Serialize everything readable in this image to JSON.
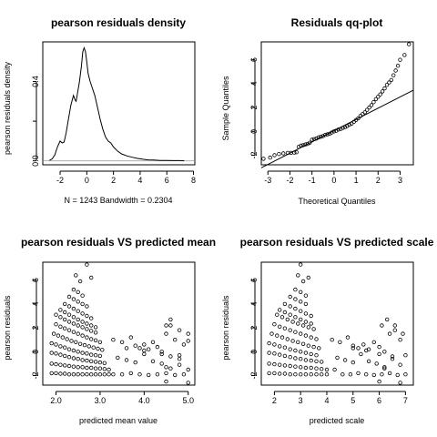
{
  "chart_data": [
    {
      "type": "line",
      "title": "pearson residuals density",
      "xlabel": "N = 1243   Bandwidth = 0.2304",
      "ylabel": "pearson residuals density",
      "xlim": [
        -3.3,
        8.1
      ],
      "ylim": [
        -0.02,
        0.6
      ],
      "x_ticks": [
        -2,
        0,
        2,
        4,
        6,
        8
      ],
      "y_ticks": [
        0.0,
        0.2,
        0.4
      ],
      "y_tick_labels": [
        "0.0",
        "",
        "0.4"
      ],
      "zero_line": true,
      "grid": false,
      "series": [
        {
          "x": [
            -2.8,
            -2.6,
            -2.4,
            -2.2,
            -2.0,
            -1.85,
            -1.7,
            -1.55,
            -1.4,
            -1.2,
            -1.0,
            -0.9,
            -0.8,
            -0.7,
            -0.55,
            -0.4,
            -0.3,
            -0.2,
            -0.1,
            0.0,
            0.1,
            0.25,
            0.4,
            0.6,
            0.8,
            1.0,
            1.2,
            1.4,
            1.6,
            1.8,
            2.0,
            2.3,
            2.6,
            3.0,
            3.4,
            3.8,
            4.2,
            4.6,
            5.0,
            5.5,
            6.0,
            6.5,
            7.0,
            7.3
          ],
          "y": [
            0.002,
            0.01,
            0.03,
            0.07,
            0.1,
            0.09,
            0.095,
            0.14,
            0.2,
            0.28,
            0.33,
            0.31,
            0.3,
            0.34,
            0.4,
            0.48,
            0.55,
            0.57,
            0.55,
            0.5,
            0.44,
            0.4,
            0.37,
            0.33,
            0.27,
            0.21,
            0.16,
            0.12,
            0.1,
            0.09,
            0.07,
            0.05,
            0.035,
            0.025,
            0.018,
            0.012,
            0.008,
            0.005,
            0.004,
            0.002,
            0.002,
            0.001,
            0.001,
            0.0
          ]
        }
      ]
    },
    {
      "type": "scatter",
      "title": "Residuals qq-plot",
      "xlabel": "Theoretical Quantiles",
      "ylabel": "Sample Quantiles",
      "xlim": [
        -3.3,
        3.6
      ],
      "ylim": [
        -2.8,
        7.5
      ],
      "x_ticks": [
        -3,
        -2,
        -1,
        0,
        1,
        2,
        3
      ],
      "y_ticks": [
        -2,
        0,
        2,
        4,
        6
      ],
      "reference_line": {
        "x": [
          -3.3,
          3.6
        ],
        "y": [
          -3.05,
          3.45
        ]
      },
      "series": [
        {
          "x": [
            -3.2,
            -2.9,
            -2.7,
            -2.5,
            -2.3,
            -2.1,
            -1.95,
            -1.8,
            -1.7,
            -1.6,
            -1.5,
            -1.4,
            -1.3,
            -1.2,
            -1.1,
            -1.0,
            -0.9,
            -0.8,
            -0.7,
            -0.6,
            -0.5,
            -0.4,
            -0.3,
            -0.2,
            -0.1,
            0.0,
            0.1,
            0.2,
            0.3,
            0.4,
            0.5,
            0.6,
            0.7,
            0.8,
            0.9,
            1.0,
            1.1,
            1.2,
            1.3,
            1.4,
            1.5,
            1.6,
            1.7,
            1.8,
            1.9,
            2.0,
            2.1,
            2.2,
            2.3,
            2.4,
            2.5,
            2.6,
            2.7,
            2.8,
            2.9,
            3.0,
            3.2,
            3.4
          ],
          "y": [
            -2.3,
            -2.2,
            -2.0,
            -1.9,
            -1.85,
            -1.8,
            -1.8,
            -1.78,
            -1.75,
            -1.3,
            -1.2,
            -1.15,
            -1.1,
            -1.05,
            -0.95,
            -0.7,
            -0.65,
            -0.6,
            -0.5,
            -0.45,
            -0.4,
            -0.3,
            -0.25,
            -0.2,
            -0.1,
            0.0,
            0.05,
            0.15,
            0.2,
            0.3,
            0.35,
            0.45,
            0.55,
            0.65,
            0.8,
            0.95,
            1.1,
            1.3,
            1.45,
            1.6,
            1.8,
            2.0,
            2.2,
            2.45,
            2.7,
            2.9,
            3.1,
            3.35,
            3.6,
            3.9,
            4.1,
            4.3,
            4.7,
            5.1,
            5.5,
            6.0,
            6.4,
            7.3
          ]
        }
      ]
    },
    {
      "type": "scatter",
      "title": "pearson residuals VS predicted mean",
      "xlabel": "predicted mean value",
      "ylabel": "pearson residuals",
      "xlim": [
        1.7,
        5.15
      ],
      "ylim": [
        -2.8,
        7.5
      ],
      "x_ticks": [
        2.0,
        3.0,
        4.0,
        5.0
      ],
      "x_tick_labels": [
        "2.0",
        "3.0",
        "4.0",
        "5.0"
      ],
      "y_ticks": [
        -2,
        0,
        2,
        4,
        6
      ],
      "series": [
        {
          "x": [
            1.9,
            2.0,
            2.1,
            2.2,
            2.3,
            2.4,
            2.5,
            2.6,
            2.7,
            2.8,
            2.9,
            3.0,
            3.1,
            3.2,
            1.9,
            2.0,
            2.1,
            2.2,
            2.3,
            2.4,
            2.5,
            2.6,
            2.7,
            2.8,
            2.9,
            3.0,
            3.1,
            3.2,
            1.9,
            2.0,
            2.1,
            2.2,
            2.3,
            2.4,
            2.5,
            2.6,
            2.7,
            2.8,
            2.9,
            3.0,
            3.1,
            1.9,
            2.0,
            2.1,
            2.2,
            2.3,
            2.4,
            2.5,
            2.6,
            2.7,
            2.8,
            2.9,
            3.0,
            1.95,
            2.05,
            2.15,
            2.25,
            2.35,
            2.45,
            2.55,
            2.65,
            2.75,
            2.85,
            2.95,
            3.05,
            2.0,
            2.1,
            2.2,
            2.3,
            2.4,
            2.5,
            2.6,
            2.7,
            2.8,
            2.9,
            3.0,
            2.0,
            2.1,
            2.2,
            2.3,
            2.4,
            2.5,
            2.6,
            2.7,
            2.8,
            2.9,
            2.1,
            2.2,
            2.3,
            2.4,
            2.5,
            2.6,
            2.7,
            2.8,
            2.9,
            2.2,
            2.3,
            2.4,
            2.5,
            2.6,
            2.7,
            2.8,
            2.3,
            2.4,
            2.5,
            2.6,
            2.7,
            2.4,
            2.5,
            2.6,
            2.45,
            2.55,
            2.7,
            2.8,
            3.3,
            3.5,
            3.7,
            3.8,
            3.9,
            4.0,
            4.1,
            4.2,
            4.3,
            4.4,
            4.5,
            4.6,
            4.7,
            4.8,
            4.9,
            5.0,
            3.4,
            3.6,
            3.8,
            4.0,
            4.2,
            4.4,
            4.5,
            4.6,
            4.8,
            5.0,
            3.3,
            3.5,
            3.7,
            3.9,
            4.1,
            4.3,
            4.5,
            4.7,
            4.9,
            3.6,
            4.0,
            4.4,
            4.6,
            4.8,
            5.0,
            4.5,
            4.6,
            4.8,
            4.5,
            5.0
          ],
          "y": [
            -1.8,
            -1.8,
            -1.85,
            -1.85,
            -1.9,
            -1.9,
            -1.9,
            -1.9,
            -1.9,
            -1.9,
            -1.9,
            -1.9,
            -1.9,
            -1.9,
            -1.0,
            -1.05,
            -1.1,
            -1.15,
            -1.2,
            -1.25,
            -1.3,
            -1.3,
            -1.35,
            -1.35,
            -1.4,
            -1.4,
            -1.45,
            -1.5,
            -0.1,
            -0.15,
            -0.25,
            -0.35,
            -0.45,
            -0.55,
            -0.6,
            -0.7,
            -0.75,
            -0.8,
            -0.85,
            -0.9,
            -0.95,
            0.7,
            0.6,
            0.45,
            0.35,
            0.2,
            0.1,
            0.0,
            -0.1,
            -0.15,
            -0.25,
            -0.3,
            -0.35,
            1.5,
            1.35,
            1.2,
            1.05,
            0.9,
            0.8,
            0.65,
            0.55,
            0.45,
            0.35,
            0.25,
            0.15,
            2.3,
            2.1,
            1.95,
            1.8,
            1.65,
            1.5,
            1.35,
            1.2,
            1.05,
            0.95,
            0.8,
            3.1,
            2.9,
            2.7,
            2.5,
            2.35,
            2.2,
            2.05,
            1.9,
            1.75,
            1.6,
            3.5,
            3.3,
            3.1,
            2.9,
            2.7,
            2.5,
            2.35,
            2.2,
            2.05,
            4.0,
            3.8,
            3.6,
            3.4,
            3.2,
            3.0,
            2.8,
            4.6,
            4.4,
            4.2,
            4.0,
            3.8,
            5.2,
            5.0,
            4.7,
            6.4,
            5.9,
            7.3,
            6.2,
            1.0,
            0.8,
            1.2,
            0.5,
            0.3,
            0.6,
            0.2,
            0.8,
            0.4,
            0.0,
            1.5,
            2.2,
            1.0,
            -0.3,
            0.6,
            0.9,
            -0.5,
            -0.7,
            -0.9,
            -0.2,
            -0.8,
            -1.0,
            -1.3,
            -0.4,
            -1.1,
            -1.5,
            -1.9,
            -1.9,
            -1.8,
            -1.9,
            -1.95,
            -1.9,
            -1.8,
            -1.95,
            -1.9,
            0.3,
            0.1,
            -0.2,
            2.7,
            1.8,
            1.5,
            -2.5,
            -1.4,
            -0.6,
            2.2,
            -2.6
          ]
        }
      ]
    },
    {
      "type": "scatter",
      "title": "pearson residuals VS predicted scale",
      "xlabel": "predicted scale",
      "ylabel": "pearson residuals",
      "xlim": [
        1.5,
        7.3
      ],
      "ylim": [
        -2.8,
        7.5
      ],
      "x_ticks": [
        2,
        3,
        4,
        5,
        6,
        7
      ],
      "y_ticks": [
        -2,
        0,
        2,
        4,
        6
      ],
      "series": [
        {
          "x": [
            1.8,
            2.0,
            2.2,
            2.4,
            2.6,
            2.8,
            3.0,
            3.2,
            3.4,
            3.6,
            3.8,
            4.0,
            1.8,
            2.0,
            2.2,
            2.4,
            2.6,
            2.8,
            3.0,
            3.2,
            3.4,
            3.6,
            3.8,
            4.0,
            1.8,
            2.0,
            2.2,
            2.4,
            2.6,
            2.8,
            3.0,
            3.2,
            3.4,
            3.6,
            3.8,
            1.8,
            2.0,
            2.2,
            2.4,
            2.6,
            2.8,
            3.0,
            3.2,
            3.4,
            3.6,
            1.9,
            2.1,
            2.3,
            2.5,
            2.7,
            2.9,
            3.1,
            3.3,
            3.5,
            3.7,
            2.0,
            2.2,
            2.4,
            2.6,
            2.8,
            3.0,
            3.2,
            3.4,
            3.6,
            2.1,
            2.3,
            2.5,
            2.7,
            2.9,
            3.1,
            3.3,
            3.5,
            2.2,
            2.4,
            2.6,
            2.8,
            3.0,
            3.2,
            3.4,
            2.4,
            2.6,
            2.8,
            3.0,
            3.2,
            3.4,
            2.6,
            2.8,
            3.0,
            3.2,
            2.8,
            3.0,
            3.2,
            2.9,
            3.1,
            3.0,
            3.3,
            4.2,
            4.5,
            4.8,
            5.0,
            5.2,
            5.4,
            5.6,
            5.8,
            6.0,
            6.2,
            6.4,
            6.6,
            6.8,
            7.0,
            4.4,
            4.7,
            5.0,
            5.3,
            5.6,
            5.9,
            6.2,
            6.5,
            6.8,
            4.3,
            4.6,
            4.9,
            5.2,
            5.5,
            5.8,
            6.1,
            6.4,
            6.7,
            7.0,
            5.0,
            5.5,
            6.0,
            6.3,
            6.6,
            6.9,
            6.0,
            6.2,
            6.5,
            6.1,
            6.8
          ],
          "y": [
            -1.8,
            -1.8,
            -1.85,
            -1.85,
            -1.9,
            -1.9,
            -1.9,
            -1.9,
            -1.9,
            -1.9,
            -1.9,
            -1.9,
            -1.0,
            -1.05,
            -1.1,
            -1.15,
            -1.2,
            -1.25,
            -1.3,
            -1.35,
            -1.35,
            -1.4,
            -1.45,
            -1.5,
            -0.1,
            -0.15,
            -0.25,
            -0.35,
            -0.45,
            -0.55,
            -0.6,
            -0.7,
            -0.75,
            -0.8,
            -0.85,
            0.7,
            0.6,
            0.45,
            0.35,
            0.2,
            0.1,
            0.0,
            -0.1,
            -0.2,
            -0.3,
            1.5,
            1.35,
            1.2,
            1.05,
            0.9,
            0.8,
            0.65,
            0.5,
            0.4,
            0.3,
            2.3,
            2.1,
            1.95,
            1.8,
            1.65,
            1.5,
            1.35,
            1.2,
            1.05,
            3.1,
            2.9,
            2.7,
            2.5,
            2.35,
            2.2,
            2.05,
            1.9,
            3.5,
            3.3,
            3.1,
            2.9,
            2.7,
            2.5,
            2.35,
            4.0,
            3.8,
            3.6,
            3.4,
            3.2,
            3.0,
            4.6,
            4.4,
            4.2,
            4.0,
            5.2,
            5.0,
            4.7,
            6.4,
            5.9,
            7.3,
            6.2,
            1.0,
            0.8,
            1.2,
            0.5,
            0.3,
            0.6,
            0.2,
            0.8,
            0.4,
            0.0,
            1.5,
            2.2,
            1.0,
            -0.3,
            -0.5,
            -0.7,
            -0.9,
            -0.2,
            -0.8,
            -1.0,
            -1.3,
            -0.4,
            -1.1,
            -1.5,
            -1.9,
            -1.9,
            -1.8,
            -1.9,
            -1.95,
            -1.9,
            -1.8,
            -1.95,
            -1.9,
            0.3,
            0.1,
            -0.2,
            2.7,
            1.8,
            1.5,
            -2.5,
            -1.4,
            -0.6,
            2.2,
            -2.6
          ]
        }
      ]
    }
  ]
}
